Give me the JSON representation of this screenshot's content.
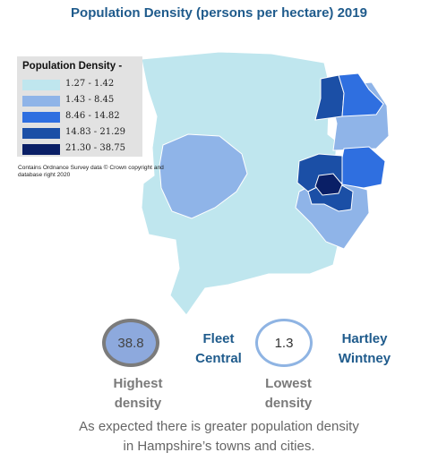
{
  "title": "Population Density (persons per hectare) 2019",
  "legend": {
    "title": "Population Density -",
    "items": [
      {
        "label": "1.27 - 1.42",
        "color": "#bfe6ee"
      },
      {
        "label": "1.43 - 8.45",
        "color": "#8fb4e8"
      },
      {
        "label": "8.46 - 14.82",
        "color": "#2f6fe0"
      },
      {
        "label": "14.83 - 21.29",
        "color": "#1b4fa6"
      },
      {
        "label": "21.30 - 38.75",
        "color": "#0a1f66"
      }
    ]
  },
  "credit": "Contains Ordnance Survey data © Crown copyright and database right 2020",
  "highest": {
    "value": "38.8",
    "place_line1": "Fleet",
    "place_line2": "Central",
    "caption_line1": "Highest",
    "caption_line2": "density"
  },
  "lowest": {
    "value": "1.3",
    "place_line1": "Hartley",
    "place_line2": "Wintney",
    "caption_line1": "Lowest",
    "caption_line2": "density"
  },
  "note_line1": "As expected there is greater population density",
  "note_line2": "in Hampshire’s towns and cities."
}
